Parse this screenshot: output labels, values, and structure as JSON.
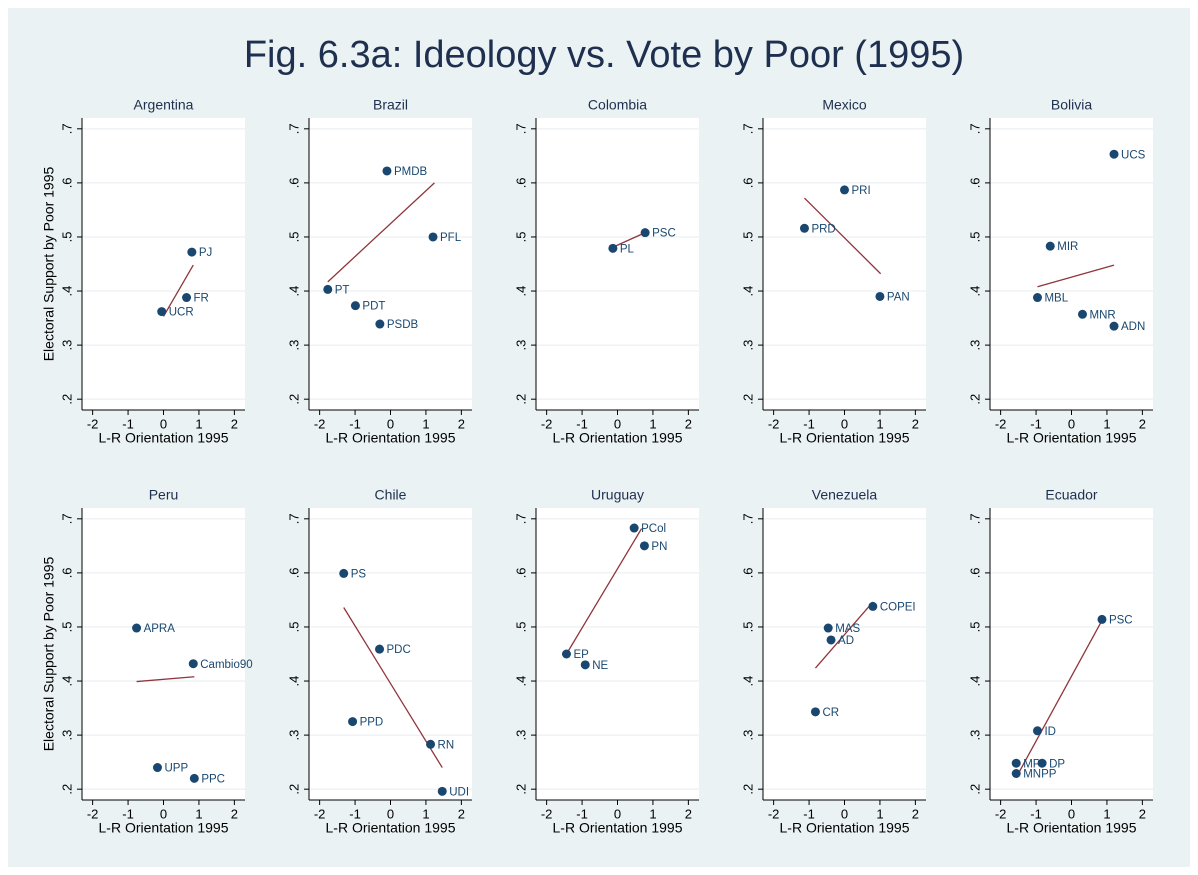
{
  "title": "Fig. 6.3a: Ideology vs. Vote by Poor (1995)",
  "chart_data": [
    {
      "type": "scatter",
      "title": "Argentina",
      "xlabel": "L-R Orientation 1995",
      "ylabel": "Electoral Support by Poor 1995",
      "x": [
        0.8,
        0.65,
        -0.05
      ],
      "values": [
        0.472,
        0.388,
        0.362
      ],
      "labels": [
        "PJ",
        "FR",
        "UCR"
      ],
      "fit": {
        "x": [
          0.0,
          0.84
        ],
        "y": [
          0.353,
          0.448
        ]
      },
      "point_color": "#1a476f",
      "fit_color": "#90353b",
      "grid": true,
      "xlim": [
        -2.3,
        2.3
      ],
      "ylim": [
        0.18,
        0.72
      ],
      "xticks": [
        -2,
        -1,
        0,
        1,
        2
      ],
      "yticks": [
        {
          "value": 0.2,
          "label": ".2"
        },
        {
          "value": 0.3,
          "label": ".3"
        },
        {
          "value": 0.4,
          "label": ".4"
        },
        {
          "value": 0.5,
          "label": ".5"
        },
        {
          "value": 0.6,
          "label": ".6"
        },
        {
          "value": 0.7,
          "label": ".7"
        }
      ]
    },
    {
      "type": "scatter",
      "title": "Brazil",
      "xlabel": "L-R Orientation 1995",
      "x": [
        -0.1,
        1.2,
        -1.77,
        -0.99,
        -0.3
      ],
      "values": [
        0.622,
        0.5,
        0.403,
        0.373,
        0.339
      ],
      "labels": [
        "PMDB",
        "PFL",
        "PT",
        "PDT",
        "PSDB"
      ],
      "fit": {
        "x": [
          -1.77,
          1.24
        ],
        "y": [
          0.417,
          0.6
        ]
      },
      "point_color": "#1a476f",
      "fit_color": "#90353b",
      "grid": true,
      "xlim": [
        -2.3,
        2.3
      ],
      "ylim": [
        0.18,
        0.72
      ],
      "xticks": [
        -2,
        -1,
        0,
        1,
        2
      ],
      "yticks": [
        {
          "value": 0.2,
          "label": ".2"
        },
        {
          "value": 0.3,
          "label": ".3"
        },
        {
          "value": 0.4,
          "label": ".4"
        },
        {
          "value": 0.5,
          "label": ".5"
        },
        {
          "value": 0.6,
          "label": ".6"
        },
        {
          "value": 0.7,
          "label": ".7"
        }
      ]
    },
    {
      "type": "scatter",
      "title": "Colombia",
      "xlabel": "L-R Orientation 1995",
      "x": [
        -0.13,
        0.78
      ],
      "values": [
        0.479,
        0.508
      ],
      "labels": [
        "PL",
        "PSC"
      ],
      "fit": {
        "x": [
          -0.13,
          0.78
        ],
        "y": [
          0.481,
          0.508
        ]
      },
      "point_color": "#1a476f",
      "fit_color": "#90353b",
      "grid": true,
      "xlim": [
        -2.3,
        2.3
      ],
      "ylim": [
        0.18,
        0.72
      ],
      "xticks": [
        -2,
        -1,
        0,
        1,
        2
      ],
      "yticks": [
        {
          "value": 0.2,
          "label": ".2"
        },
        {
          "value": 0.3,
          "label": ".3"
        },
        {
          "value": 0.4,
          "label": ".4"
        },
        {
          "value": 0.5,
          "label": ".5"
        },
        {
          "value": 0.6,
          "label": ".6"
        },
        {
          "value": 0.7,
          "label": ".7"
        }
      ]
    },
    {
      "type": "scatter",
      "title": "Mexico",
      "xlabel": "L-R Orientation 1995",
      "x": [
        0.0,
        -1.13,
        1.0
      ],
      "values": [
        0.587,
        0.516,
        0.39
      ],
      "labels": [
        "PRI",
        "PRD",
        "PAN"
      ],
      "fit": {
        "x": [
          -1.13,
          1.02
        ],
        "y": [
          0.572,
          0.432
        ]
      },
      "point_color": "#1a476f",
      "fit_color": "#90353b",
      "grid": true,
      "xlim": [
        -2.3,
        2.3
      ],
      "ylim": [
        0.18,
        0.72
      ],
      "xticks": [
        -2,
        -1,
        0,
        1,
        2
      ],
      "yticks": [
        {
          "value": 0.2,
          "label": ".2"
        },
        {
          "value": 0.3,
          "label": ".3"
        },
        {
          "value": 0.4,
          "label": ".4"
        },
        {
          "value": 0.5,
          "label": ".5"
        },
        {
          "value": 0.6,
          "label": ".6"
        },
        {
          "value": 0.7,
          "label": ".7"
        }
      ]
    },
    {
      "type": "scatter",
      "title": "Bolivia",
      "xlabel": "L-R Orientation 1995",
      "x": [
        1.2,
        -0.6,
        -0.96,
        0.31,
        1.2
      ],
      "values": [
        0.653,
        0.483,
        0.388,
        0.357,
        0.335
      ],
      "labels": [
        "UCS",
        "MIR",
        "MBL",
        "MNR",
        "ADN"
      ],
      "fit": {
        "x": [
          -0.96,
          1.2
        ],
        "y": [
          0.408,
          0.448
        ]
      },
      "point_color": "#1a476f",
      "fit_color": "#90353b",
      "grid": true,
      "xlim": [
        -2.3,
        2.3
      ],
      "ylim": [
        0.18,
        0.72
      ],
      "xticks": [
        -2,
        -1,
        0,
        1,
        2
      ],
      "yticks": [
        {
          "value": 0.2,
          "label": ".2"
        },
        {
          "value": 0.3,
          "label": ".3"
        },
        {
          "value": 0.4,
          "label": ".4"
        },
        {
          "value": 0.5,
          "label": ".5"
        },
        {
          "value": 0.6,
          "label": ".6"
        },
        {
          "value": 0.7,
          "label": ".7"
        }
      ]
    },
    {
      "type": "scatter",
      "title": "Peru",
      "xlabel": "L-R Orientation 1995",
      "ylabel": "Electoral Support by Poor 1995",
      "x": [
        -0.76,
        0.84,
        -0.17,
        0.87
      ],
      "values": [
        0.498,
        0.432,
        0.24,
        0.22
      ],
      "labels": [
        "APRA",
        "Cambio90",
        "UPP",
        "PPC"
      ],
      "fit": {
        "x": [
          -0.76,
          0.87
        ],
        "y": [
          0.399,
          0.408
        ]
      },
      "point_color": "#1a476f",
      "fit_color": "#90353b",
      "grid": true,
      "xlim": [
        -2.3,
        2.3
      ],
      "ylim": [
        0.18,
        0.72
      ],
      "xticks": [
        -2,
        -1,
        0,
        1,
        2
      ],
      "yticks": [
        {
          "value": 0.2,
          "label": ".2"
        },
        {
          "value": 0.3,
          "label": ".3"
        },
        {
          "value": 0.4,
          "label": ".4"
        },
        {
          "value": 0.5,
          "label": ".5"
        },
        {
          "value": 0.6,
          "label": ".6"
        },
        {
          "value": 0.7,
          "label": ".7"
        }
      ]
    },
    {
      "type": "scatter",
      "title": "Chile",
      "xlabel": "L-R Orientation 1995",
      "x": [
        -1.32,
        -0.31,
        -1.07,
        1.13,
        1.46
      ],
      "values": [
        0.599,
        0.459,
        0.325,
        0.283,
        0.196
      ],
      "labels": [
        "PS",
        "PDC",
        "PPD",
        "RN",
        "UDI"
      ],
      "fit": {
        "x": [
          -1.32,
          1.46
        ],
        "y": [
          0.536,
          0.24
        ]
      },
      "point_color": "#1a476f",
      "fit_color": "#90353b",
      "grid": true,
      "xlim": [
        -2.3,
        2.3
      ],
      "ylim": [
        0.18,
        0.72
      ],
      "xticks": [
        -2,
        -1,
        0,
        1,
        2
      ],
      "yticks": [
        {
          "value": 0.2,
          "label": ".2"
        },
        {
          "value": 0.3,
          "label": ".3"
        },
        {
          "value": 0.4,
          "label": ".4"
        },
        {
          "value": 0.5,
          "label": ".5"
        },
        {
          "value": 0.6,
          "label": ".6"
        },
        {
          "value": 0.7,
          "label": ".7"
        }
      ]
    },
    {
      "type": "scatter",
      "title": "Uruguay",
      "xlabel": "L-R Orientation 1995",
      "x": [
        0.47,
        0.76,
        -1.44,
        -0.91
      ],
      "values": [
        0.683,
        0.65,
        0.45,
        0.43
      ],
      "labels": [
        "PCol",
        "PN",
        "EP",
        "NE"
      ],
      "fit": {
        "x": [
          -1.44,
          0.68
        ],
        "y": [
          0.45,
          0.682
        ]
      },
      "point_color": "#1a476f",
      "fit_color": "#90353b",
      "grid": true,
      "xlim": [
        -2.3,
        2.3
      ],
      "ylim": [
        0.18,
        0.72
      ],
      "xticks": [
        -2,
        -1,
        0,
        1,
        2
      ],
      "yticks": [
        {
          "value": 0.2,
          "label": ".2"
        },
        {
          "value": 0.3,
          "label": ".3"
        },
        {
          "value": 0.4,
          "label": ".4"
        },
        {
          "value": 0.5,
          "label": ".5"
        },
        {
          "value": 0.6,
          "label": ".6"
        },
        {
          "value": 0.7,
          "label": ".7"
        }
      ]
    },
    {
      "type": "scatter",
      "title": "Venezuela",
      "xlabel": "L-R Orientation 1995",
      "x": [
        0.8,
        -0.46,
        -0.38,
        -0.82
      ],
      "values": [
        0.538,
        0.498,
        0.476,
        0.343
      ],
      "labels": [
        "COPEI",
        "MAS",
        "AD",
        "CR"
      ],
      "fit": {
        "x": [
          -0.82,
          0.8
        ],
        "y": [
          0.424,
          0.546
        ]
      },
      "point_color": "#1a476f",
      "fit_color": "#90353b",
      "grid": true,
      "xlim": [
        -2.3,
        2.3
      ],
      "ylim": [
        0.18,
        0.72
      ],
      "xticks": [
        -2,
        -1,
        0,
        1,
        2
      ],
      "yticks": [
        {
          "value": 0.2,
          "label": ".2"
        },
        {
          "value": 0.3,
          "label": ".3"
        },
        {
          "value": 0.4,
          "label": ".4"
        },
        {
          "value": 0.5,
          "label": ".5"
        },
        {
          "value": 0.6,
          "label": ".6"
        },
        {
          "value": 0.7,
          "label": ".7"
        }
      ]
    },
    {
      "type": "scatter",
      "title": "Ecuador",
      "xlabel": "L-R Orientation 1995",
      "x": [
        0.86,
        -0.96,
        -1.56,
        -0.83,
        -1.56
      ],
      "values": [
        0.514,
        0.308,
        0.248,
        0.248,
        0.229
      ],
      "labels": [
        "PSC",
        "ID",
        "MP",
        "DP",
        "MNPP"
      ],
      "fit": {
        "x": [
          -1.5,
          0.86
        ],
        "y": [
          0.229,
          0.512
        ]
      },
      "point_color": "#1a476f",
      "fit_color": "#90353b",
      "grid": true,
      "xlim": [
        -2.3,
        2.3
      ],
      "ylim": [
        0.18,
        0.72
      ],
      "xticks": [
        -2,
        -1,
        0,
        1,
        2
      ],
      "yticks": [
        {
          "value": 0.2,
          "label": ".2"
        },
        {
          "value": 0.3,
          "label": ".3"
        },
        {
          "value": 0.4,
          "label": ".4"
        },
        {
          "value": 0.5,
          "label": ".5"
        },
        {
          "value": 0.6,
          "label": ".6"
        },
        {
          "value": 0.7,
          "label": ".7"
        }
      ]
    }
  ]
}
